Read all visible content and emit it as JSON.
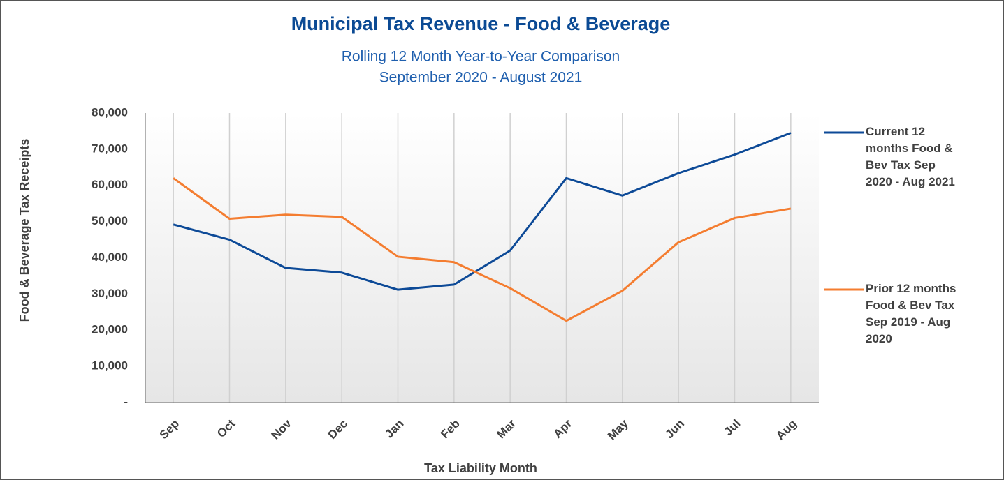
{
  "chart_data": {
    "type": "line",
    "title": "Municipal Tax Revenue - Food & Beverage",
    "subtitle": [
      "Rolling 12 Month Year-to-Year Comparison",
      "September 2020 - August 2021"
    ],
    "x_label": "Tax Liability Month",
    "y_label": "Food & Beverage Tax Receipts",
    "categories": [
      "Sep",
      "Oct",
      "Nov",
      "Dec",
      "Jan",
      "Feb",
      "Mar",
      "Apr",
      "May",
      "Jun",
      "Jul",
      "Aug"
    ],
    "series": [
      {
        "name": "Current 12 months Food & Bev Tax Sep 2020 - Aug 2021",
        "color": "#0d4a97",
        "values": [
          49200,
          45000,
          37200,
          35900,
          31200,
          32600,
          42000,
          62000,
          57200,
          63400,
          68500,
          74500
        ]
      },
      {
        "name": "Prior 12 months Food & Bev Tax Sep 2019 - Aug 2020",
        "color": "#f47d30",
        "values": [
          62000,
          50800,
          51900,
          51300,
          40300,
          38800,
          31600,
          22600,
          30900,
          44300,
          51000,
          53600
        ]
      }
    ],
    "ylim": [
      0,
      80000
    ],
    "yticks": [
      {
        "value": 0,
        "label": "-"
      },
      {
        "value": 10000,
        "label": "10,000"
      },
      {
        "value": 20000,
        "label": "20,000"
      },
      {
        "value": 30000,
        "label": "30,000"
      },
      {
        "value": 40000,
        "label": "40,000"
      },
      {
        "value": 50000,
        "label": "50,000"
      },
      {
        "value": 60000,
        "label": "60,000"
      },
      {
        "value": 70000,
        "label": "70,000"
      },
      {
        "value": 80000,
        "label": "80,000"
      }
    ],
    "grid": "x",
    "legend": "right"
  }
}
